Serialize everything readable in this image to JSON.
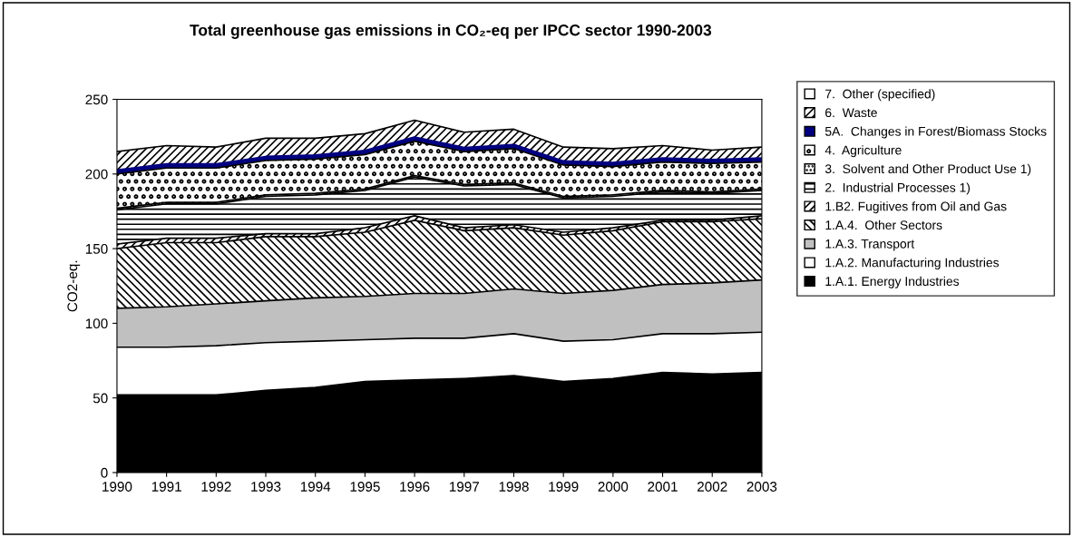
{
  "chart_data": {
    "type": "area",
    "stacked": true,
    "title": "Total greenhouse gas emissions in CO₂-eq per IPCC sector 1990-2003",
    "ylabel": "CO2-eq.",
    "categories": [
      "1990",
      "1991",
      "1992",
      "1993",
      "1994",
      "1995",
      "1996",
      "1997",
      "1998",
      "1999",
      "2000",
      "2001",
      "2002",
      "2003"
    ],
    "ylim": [
      0,
      250
    ],
    "yticks": [
      0,
      50,
      100,
      150,
      200,
      250
    ],
    "grid": false,
    "legend": "right",
    "series": [
      {
        "name": "1.A.1. Energy Industries",
        "color": "#000000",
        "values": [
          52,
          52,
          52,
          55,
          57,
          61,
          62,
          63,
          65,
          61,
          63,
          67,
          66,
          67
        ]
      },
      {
        "name": "1.A.2. Manufacturing Industries",
        "color": "#ffffff",
        "values": [
          32,
          32,
          33,
          32,
          31,
          28,
          28,
          27,
          28,
          27,
          26,
          26,
          27,
          27
        ]
      },
      {
        "name": "1.A.3. Transport",
        "color": "#c0c0c0",
        "values": [
          26,
          27,
          28,
          28,
          29,
          29,
          30,
          30,
          30,
          32,
          33,
          33,
          34,
          35
        ]
      },
      {
        "name": "1.A.4.  Other Sectors",
        "color": "#ffffff",
        "values": [
          40,
          43,
          41,
          43,
          41,
          43,
          49,
          42,
          41,
          39,
          40,
          42,
          41,
          41
        ]
      },
      {
        "name": "1.B2. Fugitives from Oil and Gas",
        "color": "#ffffff",
        "values": [
          3,
          3,
          3,
          2,
          2,
          3,
          3,
          2,
          2,
          2,
          2,
          1,
          1,
          2
        ]
      },
      {
        "name": "2.  Industrial Processes 1)",
        "color": "#ffffff",
        "values": [
          23,
          23,
          23,
          25,
          26,
          25,
          26,
          28,
          27,
          23,
          21,
          19,
          18,
          17
        ]
      },
      {
        "name": "3.  Solvent and Other Product Use 1)",
        "color": "#ffffff",
        "values": [
          1,
          1,
          1,
          1,
          1,
          1,
          1,
          1,
          1,
          1,
          1,
          1,
          1,
          1
        ]
      },
      {
        "name": "4.  Agriculture",
        "color": "#ffffff",
        "values": [
          23,
          23,
          23,
          23,
          23,
          23,
          23,
          22,
          23,
          21,
          19,
          19,
          19,
          18
        ]
      },
      {
        "name": "5A.  Changes in Forest/Biomass Stocks",
        "color": "#000080",
        "values": [
          2,
          2,
          2,
          2,
          2,
          2,
          2,
          2,
          2,
          2,
          2,
          2,
          2,
          2
        ]
      },
      {
        "name": "6.  Waste",
        "color": "#ffffff",
        "values": [
          13,
          13,
          12,
          13,
          12,
          12,
          12,
          11,
          11,
          10,
          10,
          9,
          7,
          8
        ]
      },
      {
        "name": "7.  Other (specified)",
        "color": "#ffffff",
        "values": [
          null,
          null,
          null,
          null,
          null,
          null,
          null,
          null,
          null,
          null,
          null,
          null,
          null,
          null
        ]
      }
    ]
  }
}
